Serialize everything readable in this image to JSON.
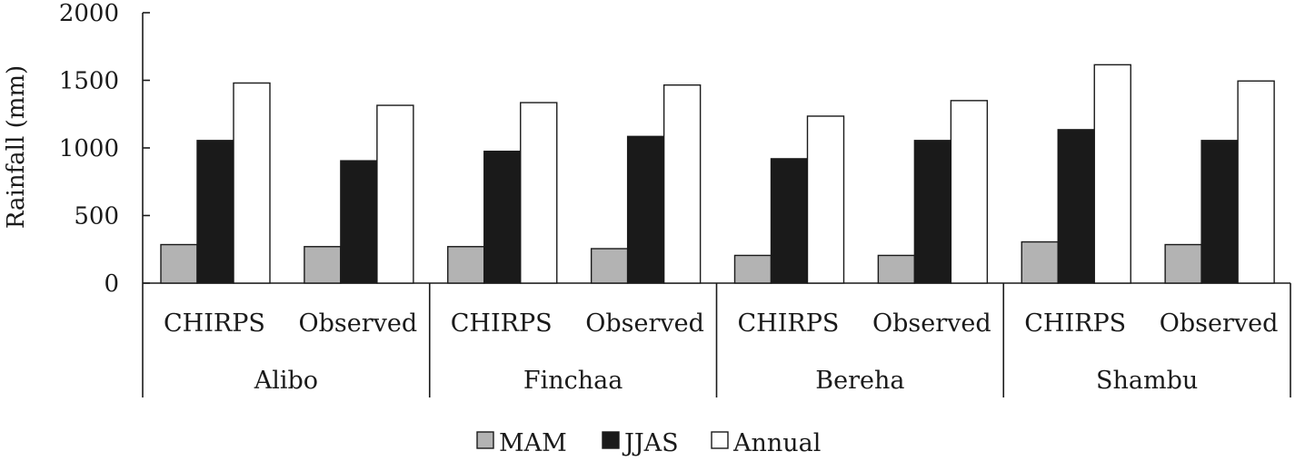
{
  "chart_data": {
    "type": "bar",
    "title": "",
    "ylabel": "Rainfall (mm)",
    "xlabel": "",
    "ylim": [
      0,
      2000
    ],
    "yticks": [
      0,
      500,
      1000,
      1500,
      2000
    ],
    "grid": false,
    "legend_position": "bottom",
    "stations": [
      "Alibo",
      "Finchaa",
      "Bereha",
      "Shambu"
    ],
    "sources": [
      "CHIRPS",
      "Observed"
    ],
    "categories": [
      "Alibo CHIRPS",
      "Alibo Observed",
      "Finchaa CHIRPS",
      "Finchaa Observed",
      "Bereha CHIRPS",
      "Bereha Observed",
      "Shambu CHIRPS",
      "Shambu Observed"
    ],
    "series": [
      {
        "name": "MAM",
        "color": "#b3b3b3",
        "values": [
          285,
          270,
          270,
          255,
          205,
          205,
          305,
          285
        ]
      },
      {
        "name": "JJAS",
        "color": "#1a1a1a",
        "values": [
          1055,
          905,
          975,
          1085,
          920,
          1055,
          1135,
          1055
        ]
      },
      {
        "name": "Annual",
        "color": "#ffffff",
        "values": [
          1480,
          1315,
          1335,
          1465,
          1235,
          1350,
          1615,
          1495
        ]
      }
    ]
  }
}
